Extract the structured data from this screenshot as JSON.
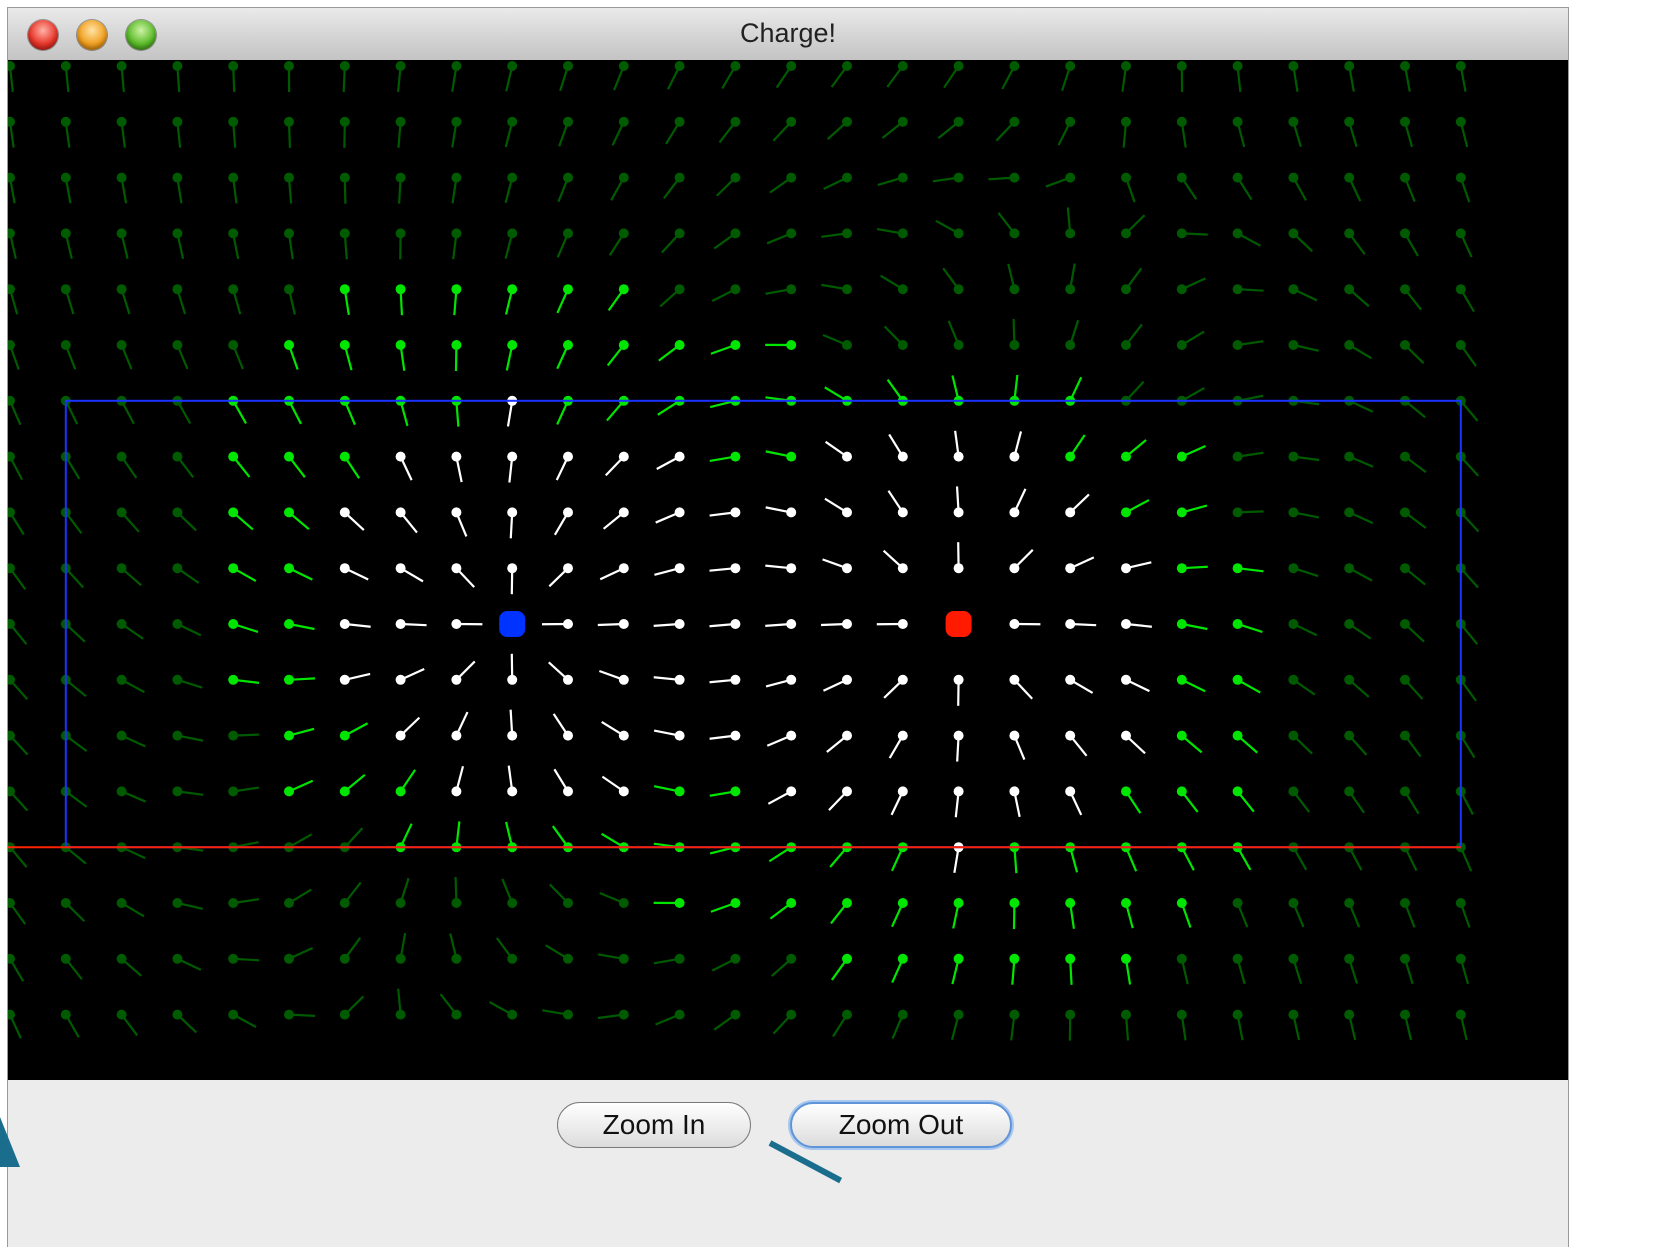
{
  "window": {
    "title": "Charge!"
  },
  "traffic_lights": [
    "close-light",
    "minimize-light",
    "zoom-light"
  ],
  "canvas": {
    "background": "#000000",
    "grid_columns": 27,
    "grid_rows": 18,
    "charges": [
      {
        "name": "negative-charge",
        "color": "#0033ff",
        "col": 9,
        "row": 10
      },
      {
        "name": "positive-charge",
        "color": "#ff1a00",
        "col": 17,
        "row": 10
      }
    ],
    "boundary_color": "#1a33ff",
    "bottom_line_color": "#ff2200",
    "field_colors": {
      "strong": "#ffffff",
      "medium": "#00e600",
      "weak": "#005a00"
    }
  },
  "buttons": {
    "zoom_in": "Zoom In",
    "zoom_out": "Zoom Out"
  }
}
